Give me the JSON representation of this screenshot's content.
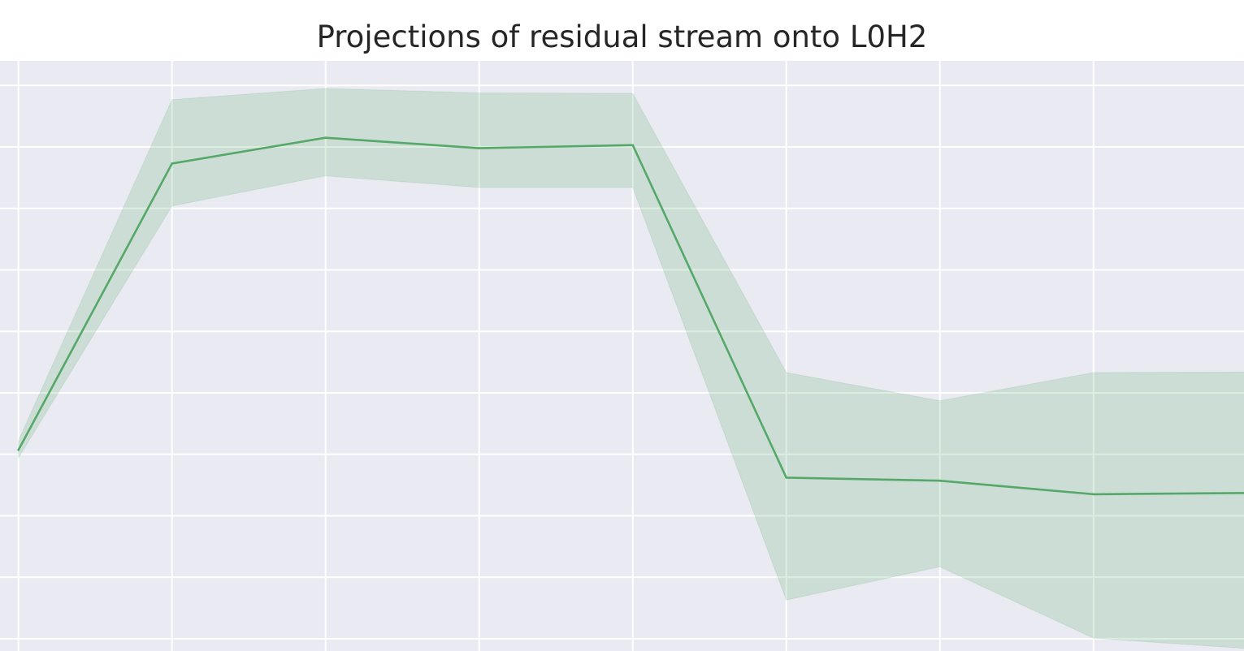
{
  "chart_data": {
    "type": "line",
    "title": "Projections of residual stream onto L0H2",
    "xlabel": "",
    "ylabel": "",
    "x": [
      0,
      1,
      2,
      3,
      4,
      5,
      6,
      7,
      8
    ],
    "series": [
      {
        "values": [
          0.07,
          4.73,
          5.15,
          4.98,
          5.03,
          -0.38,
          -0.43,
          -0.65,
          -0.63
        ],
        "lower": [
          -0.06,
          4.04,
          4.53,
          4.34,
          4.34,
          -2.37,
          -1.83,
          -2.99,
          -3.16
        ],
        "upper": [
          0.22,
          5.77,
          5.95,
          5.88,
          5.87,
          1.33,
          0.87,
          1.33,
          1.34
        ]
      }
    ],
    "xlim": [
      -0.12,
      7.98
    ],
    "ylim": [
      -3.2,
      6.4
    ],
    "grid": true,
    "colors": {
      "line": "#55a868",
      "band": "#55a868",
      "background": "#eaeaf2",
      "grid": "#ffffff"
    }
  }
}
